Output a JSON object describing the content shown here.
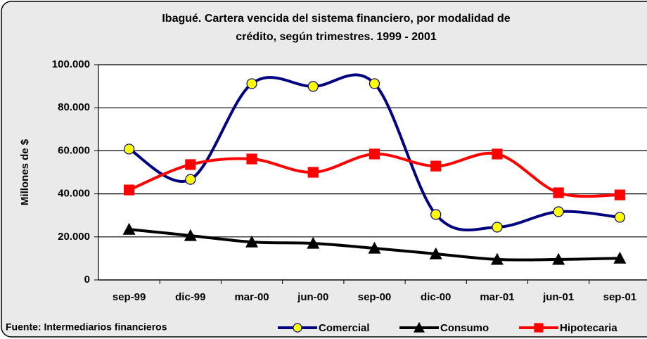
{
  "chart_data": {
    "type": "line",
    "title": [
      "Ibagué.  Cartera vencida del sistema financiero, por modalidad de",
      "crédito, según trimestres. 1999 - 2001"
    ],
    "y_label": "Millones de $",
    "source": "Fuente: Intermediarios financieros",
    "categories": [
      "sep-99",
      "dic-99",
      "mar-00",
      "jun-00",
      "sep-00",
      "dic-00",
      "mar-01",
      "jun-01",
      "sep-01"
    ],
    "series": [
      {
        "name": "Comercial",
        "color": "#000080",
        "marker": "circle",
        "marker_color": "#ffff00",
        "values": [
          60800,
          46700,
          91200,
          89900,
          91200,
          30400,
          24500,
          31700,
          29100
        ]
      },
      {
        "name": "Consumo",
        "color": "#000000",
        "marker": "triangle",
        "marker_color": "#000000",
        "values": [
          23500,
          20600,
          17600,
          17000,
          14700,
          12100,
          9500,
          9500,
          10100
        ]
      },
      {
        "name": "Hipotecaria",
        "color": "#ff0000",
        "marker": "square",
        "marker_color": "#ff0000",
        "values": [
          41800,
          53600,
          56200,
          50000,
          58500,
          52900,
          58500,
          40500,
          39500
        ]
      }
    ],
    "ylim": [
      0,
      100000
    ],
    "yticks": [
      0,
      {
        "value": 20000,
        "label": "20.000"
      },
      {
        "value": 40000,
        "label": "40.000"
      },
      {
        "value": 60000,
        "label": "60.000"
      },
      {
        "value": 80000,
        "label": "80.000"
      },
      {
        "value": 100000,
        "label": "100.000"
      }
    ],
    "grid": true,
    "smooth": true,
    "legend": "bottom"
  }
}
